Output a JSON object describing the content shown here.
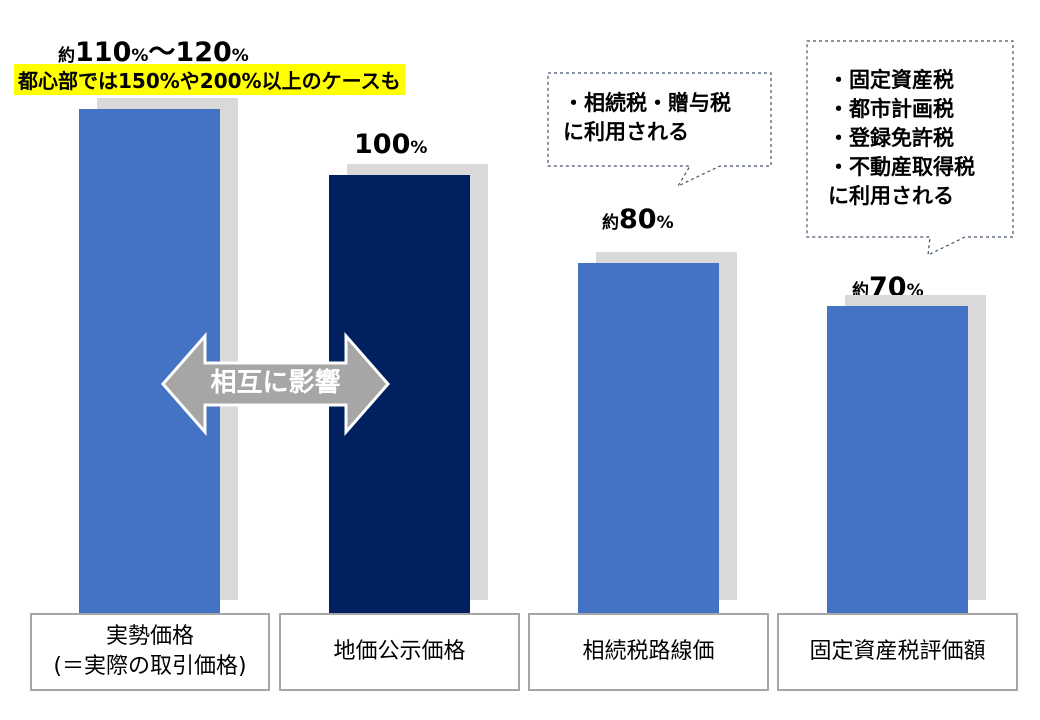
{
  "chart_data": {
    "type": "bar",
    "categories": [
      "実勢価格（＝実際の取引価格）",
      "地価公示価格",
      "相続税路線価",
      "固定資産税評価額"
    ],
    "values": [
      115,
      100,
      80,
      70
    ],
    "value_labels": [
      {
        "prefix": "約",
        "main": "110",
        "unit": "%",
        "sep": "〜",
        "main2": "120",
        "unit2": "%"
      },
      {
        "prefix": "",
        "main": "100",
        "unit": "%"
      },
      {
        "prefix": "約",
        "main": "80",
        "unit": "%"
      },
      {
        "prefix": "約",
        "main": "70",
        "unit": "%"
      }
    ],
    "category_lines": [
      [
        "実勢価格",
        "(＝実際の取引価格)"
      ],
      [
        "地価公示価格"
      ],
      [
        "相続税路線価"
      ],
      [
        "固定資産税評価額"
      ]
    ],
    "colors": [
      "#4472c4",
      "#002060",
      "#4472c4",
      "#4472c4"
    ],
    "shadow_color": "#d9d9d9",
    "note": "都心部では150%や200%以上のケースも",
    "arrow_label": "相互に影響",
    "callouts": [
      {
        "lines": [
          "・相続税・贈与税",
          "に利用される"
        ]
      },
      {
        "lines": [
          "・固定資産税",
          "・都市計画税",
          "・登録免許税",
          "・不動産取得税",
          "に利用される"
        ]
      }
    ]
  }
}
